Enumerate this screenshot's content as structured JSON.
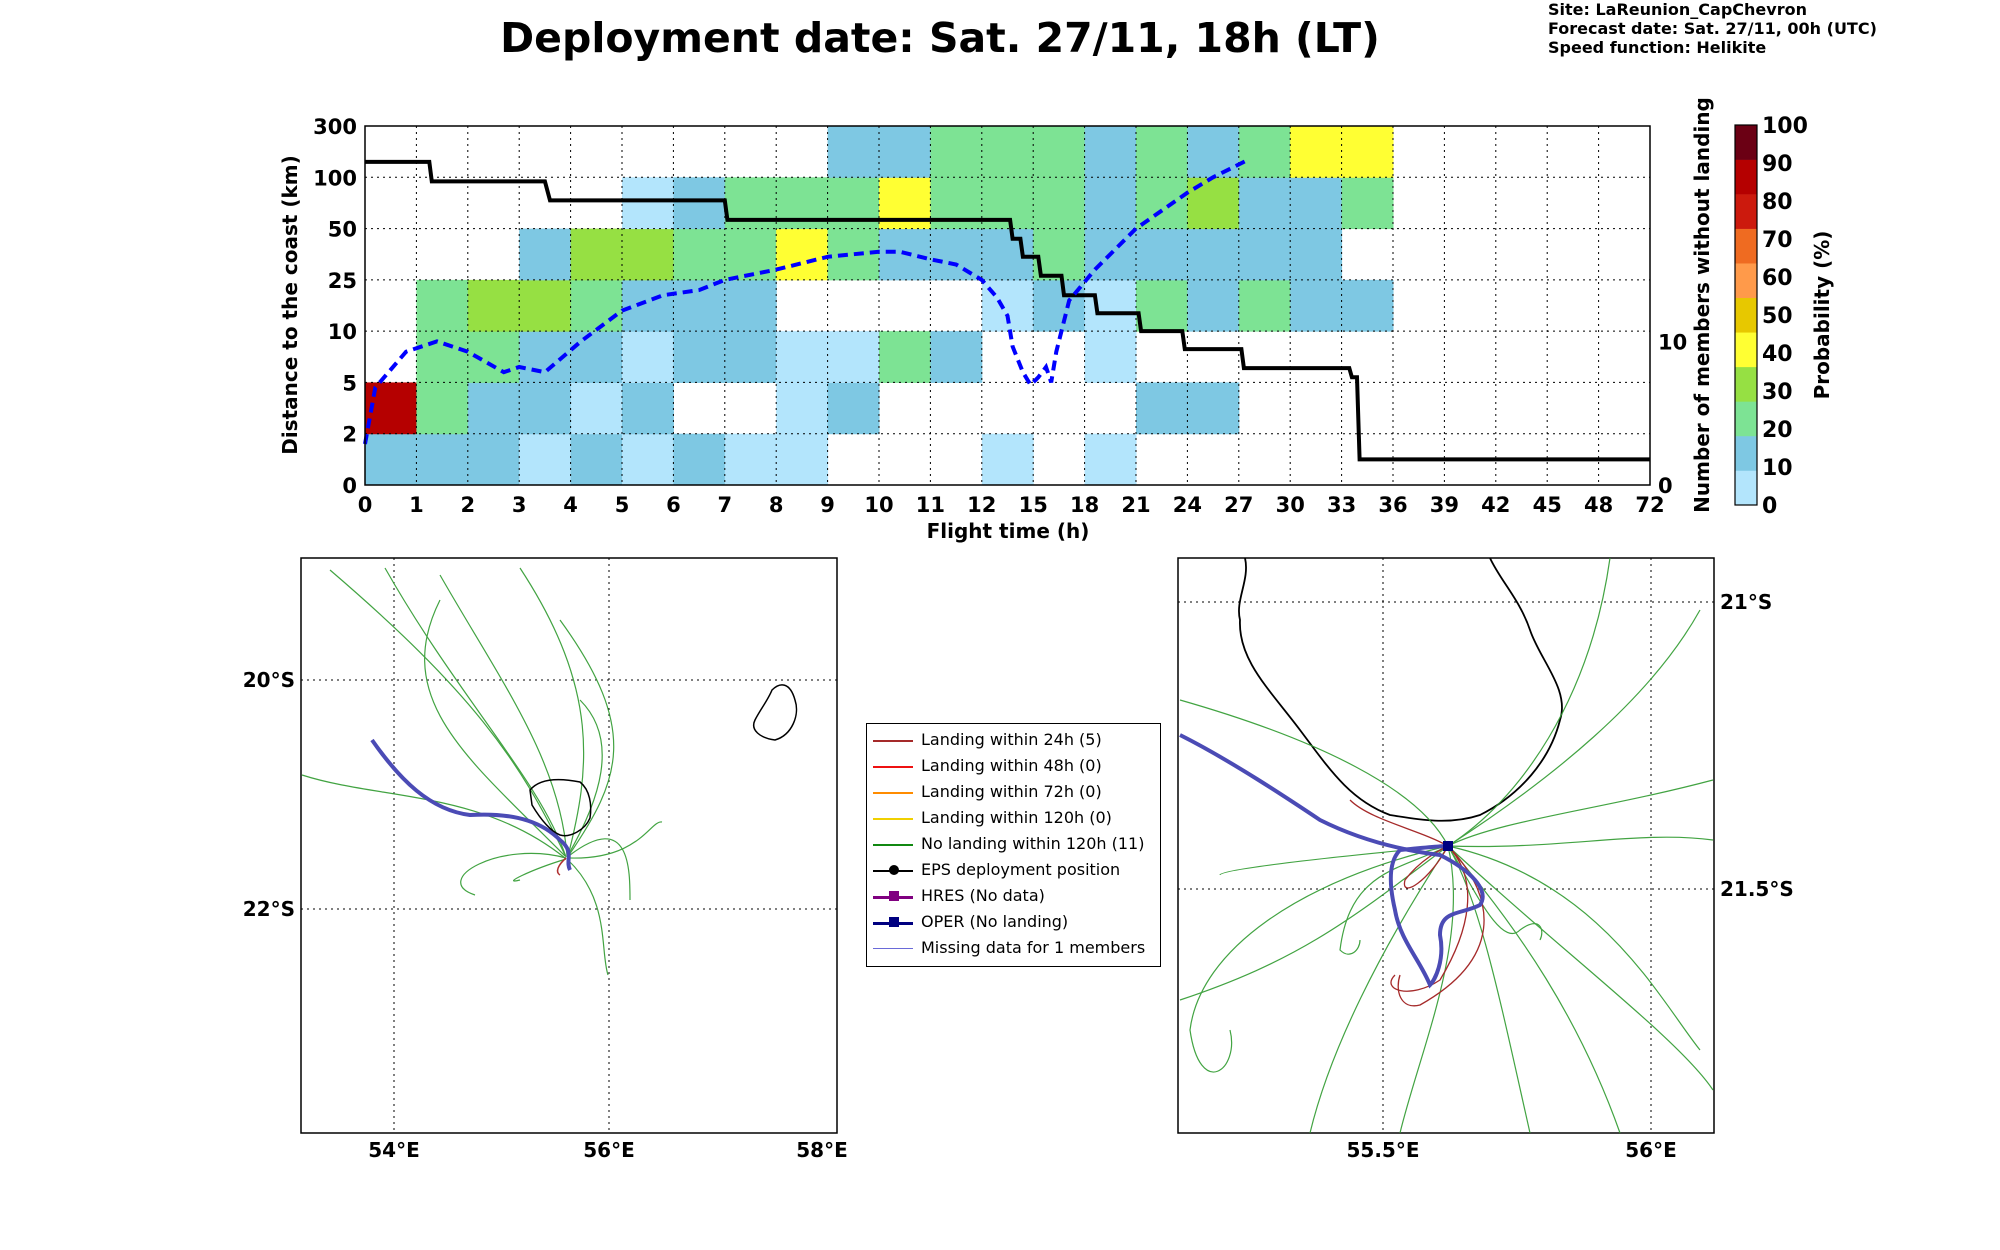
{
  "header": {
    "title": "Deployment date: Sat. 27/11, 18h (LT)",
    "site": "Site: LaReunion_CapChevron",
    "forecast": "Forecast date: Sat. 27/11, 00h (UTC)",
    "speed": "Speed function: Helikite"
  },
  "chart_data": [
    {
      "type": "heatmap",
      "xlabel": "Flight time (h)",
      "ylabel": "Distance to the coast (km)",
      "ylabel_right": "Number of members without landing",
      "colorbar_label": "Probability (%)",
      "x_ticks": [
        "0",
        "1",
        "2",
        "3",
        "4",
        "5",
        "6",
        "7",
        "8",
        "9",
        "10",
        "11",
        "12",
        "15",
        "18",
        "21",
        "24",
        "27",
        "30",
        "33",
        "36",
        "39",
        "42",
        "45",
        "48",
        "72"
      ],
      "y_ticks": [
        "0",
        "2",
        "5",
        "10",
        "25",
        "50",
        "100",
        "300"
      ],
      "right_ticks": [
        {
          "value": 0,
          "label": "0"
        },
        {
          "value": 10,
          "label": "10"
        }
      ],
      "colorbar_ticks": [
        "0",
        "10",
        "20",
        "30",
        "40",
        "50",
        "60",
        "70",
        "80",
        "90",
        "100"
      ],
      "colorbar_colors": [
        "#b3e5fc",
        "#7ec8e3",
        "#7de394",
        "#96e043",
        "#ffff33",
        "#e7c800",
        "#ff9a4a",
        "#ef6b21",
        "#cc1a0d",
        "#b50000",
        "#6b0014"
      ],
      "cells": [
        [
          "#7ec8e3",
          "#7ec8e3",
          "#7ec8e3",
          "#b3e5fc",
          "#7ec8e3",
          "#b3e5fc",
          "#7ec8e3",
          "#b3e5fc",
          "#b3e5fc",
          "",
          "",
          "",
          "#b3e5fc",
          "",
          "#b3e5fc",
          "",
          "",
          "",
          "",
          "",
          "",
          "",
          "",
          "",
          "",
          ""
        ],
        [
          "#b50000",
          "#7de394",
          "#7ec8e3",
          "#7ec8e3",
          "#b3e5fc",
          "#7ec8e3",
          "",
          "",
          "#b3e5fc",
          "#7ec8e3",
          "",
          "",
          "",
          "",
          "",
          "#7ec8e3",
          "#7ec8e3",
          "",
          "",
          "",
          "",
          "",
          "",
          "",
          "",
          ""
        ],
        [
          "",
          "#7de394",
          "#7de394",
          "#7ec8e3",
          "#7ec8e3",
          "#b3e5fc",
          "#7ec8e3",
          "#7ec8e3",
          "#b3e5fc",
          "#b3e5fc",
          "#7de394",
          "#7ec8e3",
          "",
          "",
          "#b3e5fc",
          "",
          "",
          "",
          "",
          "",
          "",
          "",
          "",
          "",
          "",
          ""
        ],
        [
          "",
          "#7de394",
          "#96e043",
          "#96e043",
          "#7de394",
          "#7ec8e3",
          "#7ec8e3",
          "#7ec8e3",
          "",
          "",
          "",
          "",
          "#b3e5fc",
          "#7ec8e3",
          "#b3e5fc",
          "#7de394",
          "#7ec8e3",
          "#7de394",
          "#7ec8e3",
          "#7ec8e3",
          "",
          "",
          "",
          "",
          "",
          ""
        ],
        [
          "",
          "",
          "",
          "#7ec8e3",
          "#96e043",
          "#96e043",
          "#7de394",
          "#7de394",
          "#ffff33",
          "#7de394",
          "#7ec8e3",
          "#7ec8e3",
          "#7ec8e3",
          "#7de394",
          "#7ec8e3",
          "#7ec8e3",
          "#7ec8e3",
          "#7ec8e3",
          "#7ec8e3",
          "",
          "",
          "",
          "",
          "",
          "",
          ""
        ],
        [
          "",
          "",
          "",
          "",
          "",
          "#b3e5fc",
          "#7ec8e3",
          "#7de394",
          "#7de394",
          "#7de394",
          "#ffff33",
          "#7de394",
          "#7de394",
          "#7de394",
          "#7ec8e3",
          "#7de394",
          "#96e043",
          "#7ec8e3",
          "#7ec8e3",
          "#7de394",
          "",
          "",
          "",
          "",
          "",
          ""
        ],
        [
          "",
          "",
          "",
          "",
          "",
          "",
          "",
          "",
          "",
          "#7ec8e3",
          "#7ec8e3",
          "#7de394",
          "#7de394",
          "#7de394",
          "#7ec8e3",
          "#7de394",
          "#7ec8e3",
          "#7de394",
          "#ffff33",
          "#ffff33",
          "",
          "",
          "",
          "",
          "",
          ""
        ]
      ],
      "series": [
        {
          "style": "solid",
          "color": "#000000",
          "points": [
            [
              0,
              6.3
            ],
            [
              1.25,
              6.3
            ],
            [
              1.3,
              5.92
            ],
            [
              3.5,
              5.92
            ],
            [
              3.6,
              5.55
            ],
            [
              7,
              5.55
            ],
            [
              7.05,
              5.17
            ],
            [
              12.55,
              5.17
            ],
            [
              12.6,
              4.8
            ],
            [
              12.75,
              4.8
            ],
            [
              12.8,
              4.45
            ],
            [
              13.1,
              4.45
            ],
            [
              13.15,
              4.08
            ],
            [
              13.55,
              4.08
            ],
            [
              13.6,
              3.7
            ],
            [
              14.2,
              3.7
            ],
            [
              14.25,
              3.35
            ],
            [
              15.05,
              3.35
            ],
            [
              15.1,
              3.0
            ],
            [
              15.9,
              3.0
            ],
            [
              15.95,
              2.65
            ],
            [
              17.05,
              2.65
            ],
            [
              17.1,
              2.28
            ],
            [
              19.15,
              2.28
            ],
            [
              19.2,
              2.1
            ],
            [
              19.3,
              2.1
            ],
            [
              19.35,
              0.5
            ],
            [
              25,
              0.5
            ]
          ]
        },
        {
          "style": "dashed",
          "color": "#0000ff",
          "points": [
            [
              0,
              0.8
            ],
            [
              0.2,
              1.9
            ],
            [
              0.8,
              2.6
            ],
            [
              1.4,
              2.8
            ],
            [
              2.0,
              2.6
            ],
            [
              2.7,
              2.2
            ],
            [
              3.0,
              2.3
            ],
            [
              3.5,
              2.2
            ],
            [
              4.2,
              2.8
            ],
            [
              5.0,
              3.4
            ],
            [
              5.8,
              3.7
            ],
            [
              6.5,
              3.8
            ],
            [
              7.0,
              4.0
            ],
            [
              8.0,
              4.2
            ],
            [
              9.0,
              4.45
            ],
            [
              10.0,
              4.55
            ],
            [
              10.4,
              4.55
            ],
            [
              11.0,
              4.4
            ],
            [
              11.5,
              4.3
            ],
            [
              12.0,
              4.0
            ],
            [
              12.3,
              3.65
            ],
            [
              12.5,
              3.3
            ],
            [
              12.6,
              2.7
            ],
            [
              12.8,
              2.2
            ],
            [
              12.95,
              1.95
            ],
            [
              13.1,
              2.1
            ],
            [
              13.25,
              2.3
            ],
            [
              13.35,
              2.0
            ],
            [
              13.45,
              2.6
            ],
            [
              13.7,
              3.6
            ],
            [
              14.2,
              4.2
            ],
            [
              15.0,
              5.0
            ],
            [
              16.0,
              5.7
            ],
            [
              16.5,
              6.0
            ],
            [
              17.2,
              6.35
            ]
          ]
        }
      ]
    }
  ],
  "maps": {
    "left": {
      "x_ticks": [
        "54°E",
        "56°E",
        "58°E"
      ],
      "y_ticks": [
        "20°S",
        "22°S"
      ]
    },
    "right": {
      "x_ticks": [
        "55.5°E",
        "56°E"
      ],
      "y_ticks": [
        "21°S",
        "21.5°S"
      ]
    }
  },
  "legend": {
    "items": [
      {
        "label": "Landing within 24h (5)",
        "color": "#a52a2a"
      },
      {
        "label": "Landing within 48h (0)",
        "color": "#ee1111"
      },
      {
        "label": "Landing within 72h (0)",
        "color": "#ff8c00"
      },
      {
        "label": "Landing within 120h (0)",
        "color": "#f0d000"
      },
      {
        "label": "No landing within 120h (11)",
        "color": "#118811"
      },
      {
        "label": "EPS deployment position",
        "color": "#000000"
      },
      {
        "label": "HRES (No data)",
        "color": "#800080"
      },
      {
        "label": "OPER (No landing)",
        "color": "#000080"
      },
      {
        "label": "Missing data for 1 members",
        "color": "#6a6ad8"
      }
    ]
  }
}
